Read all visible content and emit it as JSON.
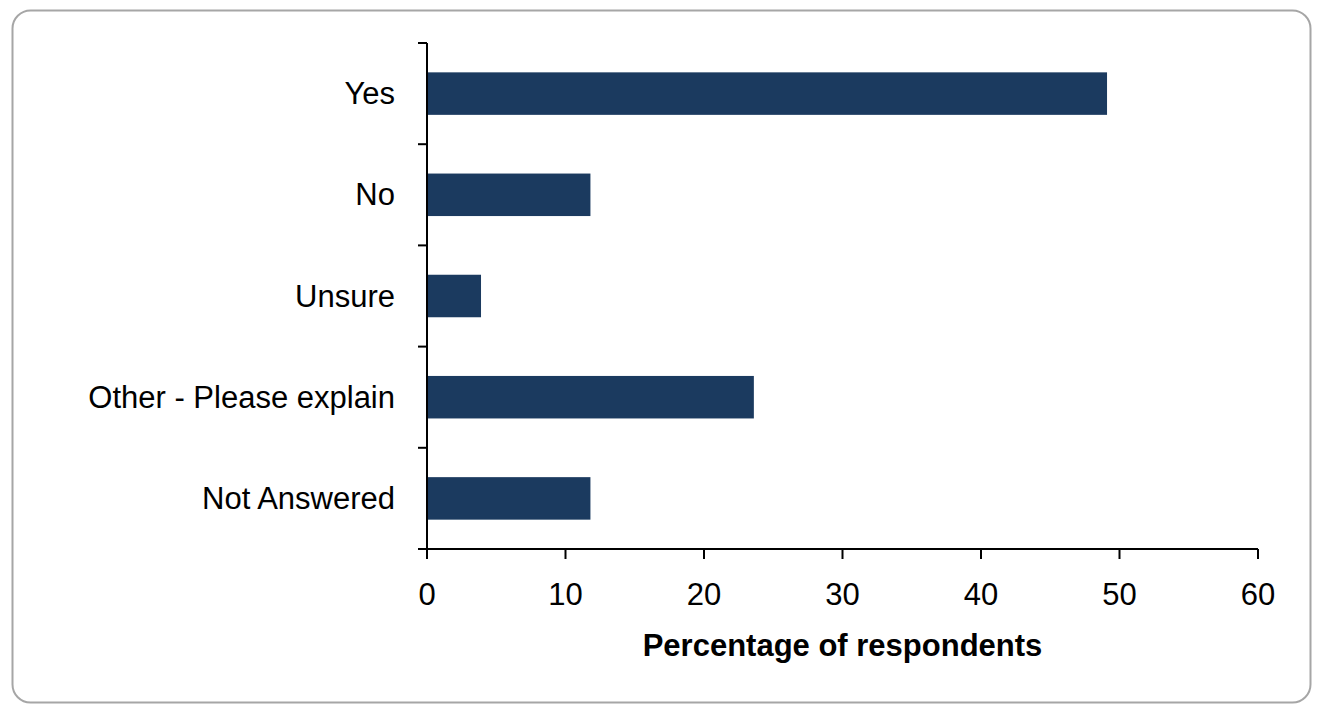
{
  "chart_data": {
    "type": "bar",
    "orientation": "horizontal",
    "categories": [
      "Yes",
      "No",
      "Unsure",
      "Other - Please explain",
      "Not Answered"
    ],
    "values": [
      49.1,
      11.8,
      3.9,
      23.6,
      11.8
    ],
    "color": "#1b3a5f",
    "xlabel": "Percentage of respondents",
    "xlim": [
      0,
      60
    ],
    "xticks": [
      0,
      10,
      20,
      30,
      40,
      50,
      60
    ],
    "grid": false
  }
}
